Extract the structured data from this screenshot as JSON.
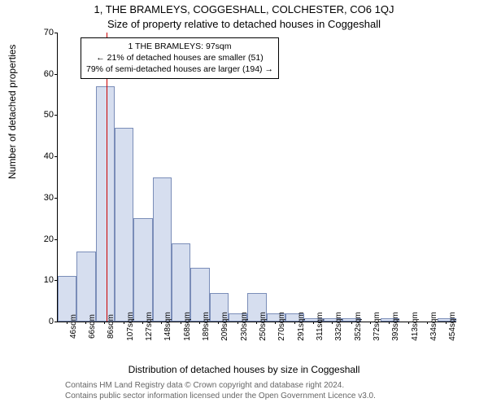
{
  "chart": {
    "type": "histogram",
    "title_main": "1, THE BRAMLEYS, COGGESHALL, COLCHESTER, CO6 1QJ",
    "title_sub": "Size of property relative to detached houses in Coggeshall",
    "ylabel": "Number of detached properties",
    "xlabel": "Distribution of detached houses by size in Coggeshall",
    "title_fontsize": 13,
    "label_fontsize": 12,
    "tick_fontsize": 11,
    "background_color": "#ffffff",
    "bar_fill": "#d6deef",
    "bar_stroke": "#7a8db8",
    "marker_color": "#cc0000",
    "ylim": [
      0,
      70
    ],
    "ytick_step": 10,
    "yticks": [
      0,
      10,
      20,
      30,
      40,
      50,
      60,
      70
    ],
    "xtick_labels": [
      "46sqm",
      "66sqm",
      "86sqm",
      "107sqm",
      "127sqm",
      "148sqm",
      "168sqm",
      "189sqm",
      "209sqm",
      "230sqm",
      "250sqm",
      "270sqm",
      "291sqm",
      "311sqm",
      "332sqm",
      "352sqm",
      "372sqm",
      "393sqm",
      "413sqm",
      "434sqm",
      "454sqm"
    ],
    "bars": [
      11,
      17,
      57,
      47,
      25,
      35,
      19,
      13,
      7,
      2,
      7,
      2,
      2,
      0.8,
      0.8,
      0.8,
      0,
      0.8,
      0,
      0,
      0.8
    ],
    "marker_index": 2.55,
    "annotation": {
      "line1": "1 THE BRAMLEYS: 97sqm",
      "line2": "← 21% of detached houses are smaller (51)",
      "line3": "79% of semi-detached houses are larger (194) →"
    },
    "attribution1": "Contains HM Land Registry data © Crown copyright and database right 2024.",
    "attribution2": "Contains public sector information licensed under the Open Government Licence v3.0."
  }
}
